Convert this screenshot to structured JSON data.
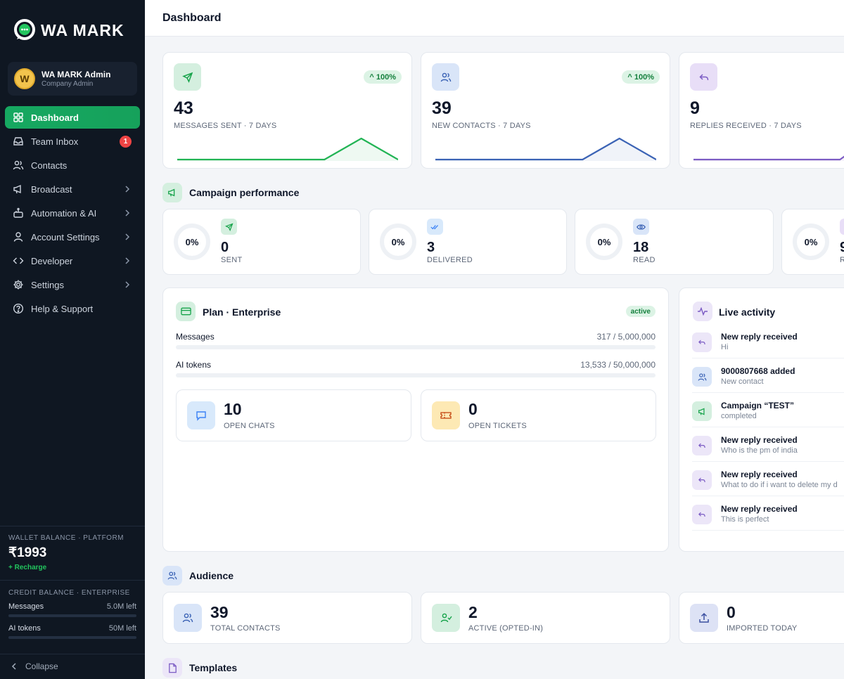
{
  "app": {
    "logo_text": "WA MARK"
  },
  "user": {
    "initial": "W",
    "name": "WA MARK Admin",
    "role": "Company Admin"
  },
  "nav": {
    "items": [
      {
        "label": "Dashboard",
        "icon": "grid-icon"
      },
      {
        "label": "Team Inbox",
        "icon": "inbox-icon",
        "badge": "1"
      },
      {
        "label": "Contacts",
        "icon": "users-icon"
      },
      {
        "label": "Broadcast",
        "icon": "megaphone-icon"
      },
      {
        "label": "Automation & AI",
        "icon": "bot-icon"
      },
      {
        "label": "Account Settings",
        "icon": "user-icon"
      },
      {
        "label": "Developer",
        "icon": "code-icon"
      },
      {
        "label": "Settings",
        "icon": "gear-icon"
      },
      {
        "label": "Help & Support",
        "icon": "help-icon"
      }
    ]
  },
  "wallet": {
    "label": "WALLET BALANCE · PLATFORM",
    "amount": "₹1993",
    "recharge": "+ Recharge"
  },
  "credit": {
    "label": "CREDIT BALANCE · ENTERPRISE",
    "messages_label": "Messages",
    "messages_left": "5.0M left",
    "ai_label": "AI tokens",
    "ai_left": "50M left"
  },
  "collapse_label": "Collapse",
  "header": {
    "title": "Dashboard"
  },
  "stats": [
    {
      "value": "43",
      "label": "MESSAGES SENT · 7 DAYS",
      "change": "^ 100%",
      "color": "#22b455",
      "trend": [
        0,
        0,
        0,
        0,
        0,
        1,
        0
      ]
    },
    {
      "value": "39",
      "label": "NEW CONTACTS · 7 DAYS",
      "change": "^ 100%",
      "color": "#3b63b5",
      "trend": [
        0,
        0,
        0,
        0,
        0,
        1,
        0
      ]
    },
    {
      "value": "9",
      "label": "REPLIES RECEIVED · 7 DAYS",
      "change": "",
      "color": "#7c5cc4",
      "trend": [
        0,
        0,
        0,
        0,
        0,
        0,
        1
      ]
    }
  ],
  "campaign": {
    "title": "Campaign performance",
    "items": [
      {
        "percent": "0%",
        "value": "0",
        "label": "SENT",
        "icon": "send-icon"
      },
      {
        "percent": "0%",
        "value": "3",
        "label": "DELIVERED",
        "icon": "double-check-icon"
      },
      {
        "percent": "0%",
        "value": "18",
        "label": "READ",
        "icon": "eye-icon"
      },
      {
        "percent": "0%",
        "value": "9",
        "label": "R",
        "icon": "reply-icon"
      }
    ]
  },
  "plan": {
    "title": "Plan · Enterprise",
    "status": "active",
    "messages_label": "Messages",
    "messages_usage": "317 / 5,000,000",
    "ai_label": "AI tokens",
    "ai_usage": "13,533 / 50,000,000",
    "open_chats_value": "10",
    "open_chats_label": "OPEN CHATS",
    "open_tickets_value": "0",
    "open_tickets_label": "OPEN TICKETS"
  },
  "activity": {
    "title": "Live activity",
    "items": [
      {
        "title": "New reply received",
        "sub": "Hi",
        "icon": "reply-icon"
      },
      {
        "title": "9000807668 added",
        "sub": "New contact",
        "icon": "users-icon"
      },
      {
        "title": "Campaign “TEST”",
        "sub": "completed",
        "icon": "megaphone-icon"
      },
      {
        "title": "New reply received",
        "sub": "Who is the pm of india",
        "icon": "reply-icon"
      },
      {
        "title": "New reply received",
        "sub": "What to do if i want to delete my d",
        "icon": "reply-icon"
      },
      {
        "title": "New reply received",
        "sub": "This is perfect",
        "icon": "reply-icon"
      }
    ]
  },
  "audience": {
    "title": "Audience",
    "items": [
      {
        "value": "39",
        "label": "TOTAL CONTACTS"
      },
      {
        "value": "2",
        "label": "ACTIVE (OPTED-IN)"
      },
      {
        "value": "0",
        "label": "IMPORTED TODAY"
      }
    ]
  },
  "templates": {
    "title": "Templates"
  }
}
